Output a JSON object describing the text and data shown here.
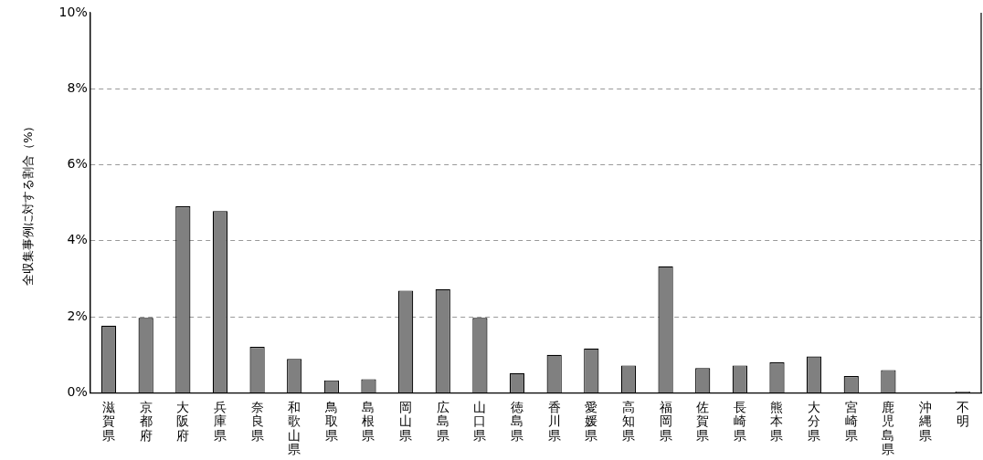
{
  "chart_data": {
    "type": "bar",
    "ylabel": "全収集事例に対する割合（%）",
    "categories": [
      "滋賀県",
      "京都府",
      "大阪府",
      "兵庫県",
      "奈良県",
      "和歌山県",
      "鳥取県",
      "島根県",
      "岡山県",
      "広島県",
      "山口県",
      "徳島県",
      "香川県",
      "愛媛県",
      "高知県",
      "福岡県",
      "佐賀県",
      "長崎県",
      "熊本県",
      "大分県",
      "宮崎県",
      "鹿児島県",
      "沖縄県",
      "不明"
    ],
    "values": [
      1.77,
      1.97,
      4.91,
      4.78,
      1.21,
      0.89,
      0.33,
      0.36,
      2.69,
      2.73,
      1.97,
      0.52,
      1.0,
      1.17,
      0.72,
      3.33,
      0.65,
      0.72,
      0.8,
      0.96,
      0.44,
      0.6,
      0,
      0.04
    ],
    "color": "#808080",
    "ylim": [
      0,
      10
    ],
    "yticks": [
      {
        "value": 0,
        "label": "0%"
      },
      {
        "value": 2,
        "label": "2%"
      },
      {
        "value": 4,
        "label": "4%"
      },
      {
        "value": 6,
        "label": "6%"
      },
      {
        "value": 8,
        "label": "8%"
      },
      {
        "value": 10,
        "label": "10%"
      }
    ],
    "grid": "y",
    "legend": false
  }
}
